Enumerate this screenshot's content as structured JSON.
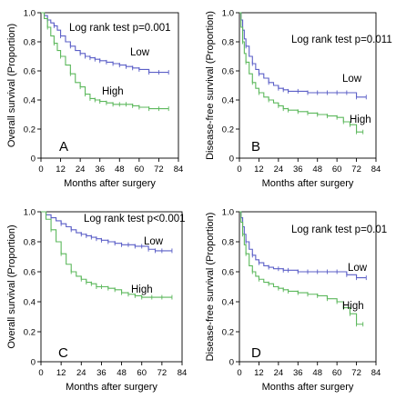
{
  "chart_data": [
    {
      "type": "line",
      "panel_label": "A",
      "ylabel": "Overall survival (Proportion)",
      "xlabel": "Months after surgery",
      "xlim": [
        0,
        84
      ],
      "ylim": [
        0,
        1.0
      ],
      "xticks": [
        "0",
        "12",
        "24",
        "36",
        "48",
        "60",
        "72",
        "84"
      ],
      "yticks": [
        "0",
        "0.2",
        "0.4",
        "0.6",
        "0.8",
        "1.0"
      ],
      "annotation": "Log rank test p=0.001",
      "series": [
        {
          "name": "Low",
          "color": "#5b5fc7",
          "x": [
            0,
            2,
            4,
            6,
            8,
            10,
            12,
            15,
            18,
            21,
            24,
            27,
            30,
            33,
            36,
            40,
            44,
            48,
            52,
            56,
            60,
            66,
            72,
            78
          ],
          "y": [
            1.0,
            0.98,
            0.95,
            0.93,
            0.91,
            0.88,
            0.84,
            0.8,
            0.77,
            0.74,
            0.72,
            0.7,
            0.69,
            0.68,
            0.67,
            0.66,
            0.65,
            0.64,
            0.63,
            0.62,
            0.61,
            0.59,
            0.59,
            0.59
          ]
        },
        {
          "name": "High",
          "color": "#5cb85c",
          "x": [
            0,
            2,
            4,
            6,
            8,
            10,
            12,
            15,
            18,
            21,
            24,
            27,
            30,
            33,
            36,
            40,
            44,
            48,
            52,
            56,
            60,
            66,
            72,
            78
          ],
          "y": [
            1.0,
            0.96,
            0.9,
            0.84,
            0.79,
            0.74,
            0.7,
            0.64,
            0.58,
            0.52,
            0.49,
            0.44,
            0.41,
            0.4,
            0.39,
            0.38,
            0.37,
            0.37,
            0.37,
            0.36,
            0.35,
            0.34,
            0.34,
            0.34
          ]
        }
      ]
    },
    {
      "type": "line",
      "panel_label": "B",
      "ylabel": "Disease-free survival (Proportion)",
      "xlabel": "Months after surgery",
      "xlim": [
        0,
        84
      ],
      "ylim": [
        0,
        1.0
      ],
      "xticks": [
        "0",
        "12",
        "24",
        "36",
        "48",
        "60",
        "72",
        "84"
      ],
      "yticks": [
        "0",
        "0.2",
        "0.4",
        "0.6",
        "0.8",
        "1.0"
      ],
      "annotation": "Log rank test p=0.011",
      "series": [
        {
          "name": "Low",
          "color": "#5b5fc7",
          "x": [
            0,
            1,
            2,
            3,
            4,
            6,
            8,
            10,
            12,
            15,
            18,
            21,
            24,
            27,
            30,
            36,
            42,
            48,
            54,
            60,
            66,
            72,
            78
          ],
          "y": [
            1.0,
            0.95,
            0.88,
            0.82,
            0.77,
            0.7,
            0.65,
            0.61,
            0.58,
            0.55,
            0.52,
            0.5,
            0.48,
            0.47,
            0.46,
            0.46,
            0.45,
            0.45,
            0.45,
            0.45,
            0.45,
            0.42,
            0.42
          ]
        },
        {
          "name": "High",
          "color": "#5cb85c",
          "x": [
            0,
            1,
            2,
            3,
            4,
            6,
            8,
            10,
            12,
            15,
            18,
            21,
            24,
            27,
            30,
            36,
            42,
            48,
            54,
            60,
            64,
            68,
            72,
            76
          ],
          "y": [
            1.0,
            0.9,
            0.8,
            0.72,
            0.66,
            0.58,
            0.52,
            0.48,
            0.45,
            0.42,
            0.4,
            0.38,
            0.36,
            0.34,
            0.33,
            0.32,
            0.31,
            0.3,
            0.29,
            0.28,
            0.25,
            0.23,
            0.18,
            0.18
          ]
        }
      ]
    },
    {
      "type": "line",
      "panel_label": "C",
      "ylabel": "Overall survival (Proportion)",
      "xlabel": "Months after surgery",
      "xlim": [
        0,
        84
      ],
      "ylim": [
        0,
        1.0
      ],
      "xticks": [
        "0",
        "12",
        "24",
        "36",
        "48",
        "60",
        "72",
        "84"
      ],
      "yticks": [
        "0",
        "0.2",
        "0.4",
        "0.6",
        "0.8",
        "1.0"
      ],
      "annotation": "Log rank test p<0.001",
      "series": [
        {
          "name": "Low",
          "color": "#5b5fc7",
          "x": [
            0,
            3,
            6,
            9,
            12,
            15,
            18,
            21,
            24,
            27,
            30,
            33,
            36,
            40,
            44,
            48,
            52,
            56,
            60,
            64,
            68,
            72,
            78
          ],
          "y": [
            1.0,
            0.98,
            0.96,
            0.94,
            0.92,
            0.9,
            0.88,
            0.86,
            0.85,
            0.84,
            0.83,
            0.82,
            0.81,
            0.8,
            0.79,
            0.78,
            0.78,
            0.77,
            0.77,
            0.75,
            0.74,
            0.74,
            0.74
          ]
        },
        {
          "name": "High",
          "color": "#5cb85c",
          "x": [
            0,
            3,
            6,
            9,
            12,
            15,
            18,
            21,
            24,
            27,
            30,
            33,
            36,
            40,
            44,
            48,
            52,
            56,
            60,
            66,
            72,
            78
          ],
          "y": [
            1.0,
            0.95,
            0.88,
            0.8,
            0.72,
            0.65,
            0.6,
            0.57,
            0.55,
            0.53,
            0.52,
            0.5,
            0.5,
            0.49,
            0.48,
            0.46,
            0.45,
            0.44,
            0.43,
            0.43,
            0.43,
            0.43
          ]
        }
      ]
    },
    {
      "type": "line",
      "panel_label": "D",
      "ylabel": "Disease-free survival (Proportion)",
      "xlabel": "Months after surgery",
      "xlim": [
        0,
        84
      ],
      "ylim": [
        0,
        1.0
      ],
      "xticks": [
        "0",
        "12",
        "24",
        "36",
        "48",
        "60",
        "72",
        "84"
      ],
      "yticks": [
        "0",
        "0.2",
        "0.4",
        "0.6",
        "0.8",
        "1.0"
      ],
      "annotation": "Log rank test p=0.01",
      "series": [
        {
          "name": "Low",
          "color": "#5b5fc7",
          "x": [
            0,
            1,
            2,
            3,
            4,
            6,
            8,
            10,
            12,
            15,
            18,
            21,
            24,
            27,
            30,
            36,
            42,
            48,
            54,
            60,
            66,
            72,
            78
          ],
          "y": [
            1.0,
            0.96,
            0.9,
            0.85,
            0.8,
            0.75,
            0.71,
            0.68,
            0.66,
            0.64,
            0.63,
            0.62,
            0.62,
            0.61,
            0.61,
            0.6,
            0.6,
            0.6,
            0.6,
            0.6,
            0.58,
            0.56,
            0.56
          ]
        },
        {
          "name": "High",
          "color": "#5cb85c",
          "x": [
            0,
            1,
            2,
            3,
            4,
            6,
            8,
            10,
            12,
            15,
            18,
            21,
            24,
            27,
            30,
            36,
            42,
            48,
            54,
            60,
            64,
            68,
            72,
            76
          ],
          "y": [
            1.0,
            0.93,
            0.85,
            0.78,
            0.72,
            0.64,
            0.6,
            0.57,
            0.55,
            0.53,
            0.52,
            0.5,
            0.49,
            0.48,
            0.47,
            0.46,
            0.45,
            0.44,
            0.42,
            0.4,
            0.36,
            0.32,
            0.25,
            0.25
          ]
        }
      ]
    }
  ]
}
